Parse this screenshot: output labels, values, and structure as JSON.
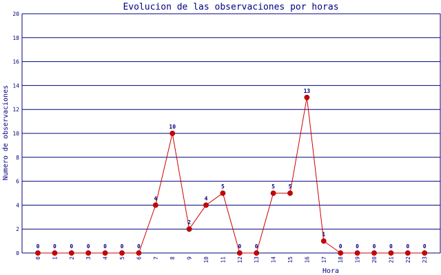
{
  "colors": {
    "grid": "#000080",
    "axis": "#000080",
    "text": "#000080",
    "line": "#cc0000",
    "marker": "#cc0000"
  },
  "chart_data": {
    "type": "line",
    "title": "Evolucion de las observaciones por horas",
    "xlabel": "Hora",
    "ylabel": "Numero de observaciones",
    "categories": [
      "0",
      "1",
      "2",
      "3",
      "4",
      "5",
      "6",
      "7",
      "8",
      "9",
      "10",
      "11",
      "12",
      "13",
      "14",
      "15",
      "16",
      "17",
      "18",
      "19",
      "20",
      "21",
      "22",
      "23"
    ],
    "values": [
      0,
      0,
      0,
      0,
      0,
      0,
      0,
      4,
      10,
      2,
      4,
      5,
      0,
      0,
      5,
      5,
      13,
      1,
      0,
      0,
      0,
      0,
      0,
      0
    ],
    "ylim": [
      0,
      20
    ],
    "yticks": [
      0,
      2,
      4,
      6,
      8,
      10,
      12,
      14,
      16,
      18,
      20
    ],
    "grid": true,
    "data_labels": true,
    "marker": "circle"
  }
}
